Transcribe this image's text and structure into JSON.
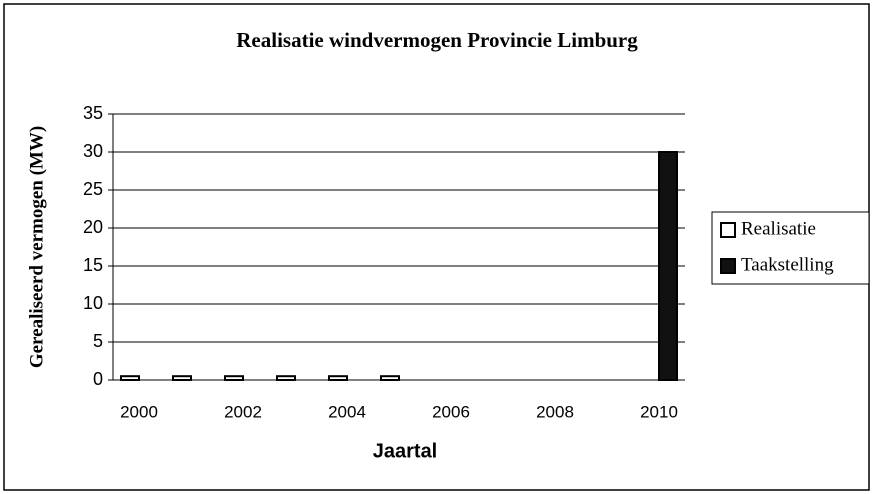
{
  "chart_data": {
    "type": "bar",
    "title": "Realisatie windvermogen Provincie Limburg",
    "x_label": "Jaartal",
    "y_label": "Gerealiseerd vermogen (MW)",
    "categories": [
      "2000",
      null,
      "2002",
      null,
      "2004",
      null,
      "2006",
      null,
      "2008",
      null,
      "2010"
    ],
    "series": [
      {
        "name": "Realisatie",
        "color": "#ffffff",
        "values": [
          0.5,
          0.5,
          0.5,
          0.5,
          0.5,
          0.5,
          null,
          null,
          null,
          null,
          null
        ]
      },
      {
        "name": "Taakstelling",
        "color": "#111111",
        "values": [
          null,
          null,
          null,
          null,
          null,
          null,
          null,
          null,
          null,
          null,
          30
        ]
      }
    ],
    "ylim": [
      0,
      35
    ],
    "yticks": [
      0,
      5,
      10,
      15,
      20,
      25,
      30,
      35
    ],
    "grid": true,
    "legend": "right"
  }
}
